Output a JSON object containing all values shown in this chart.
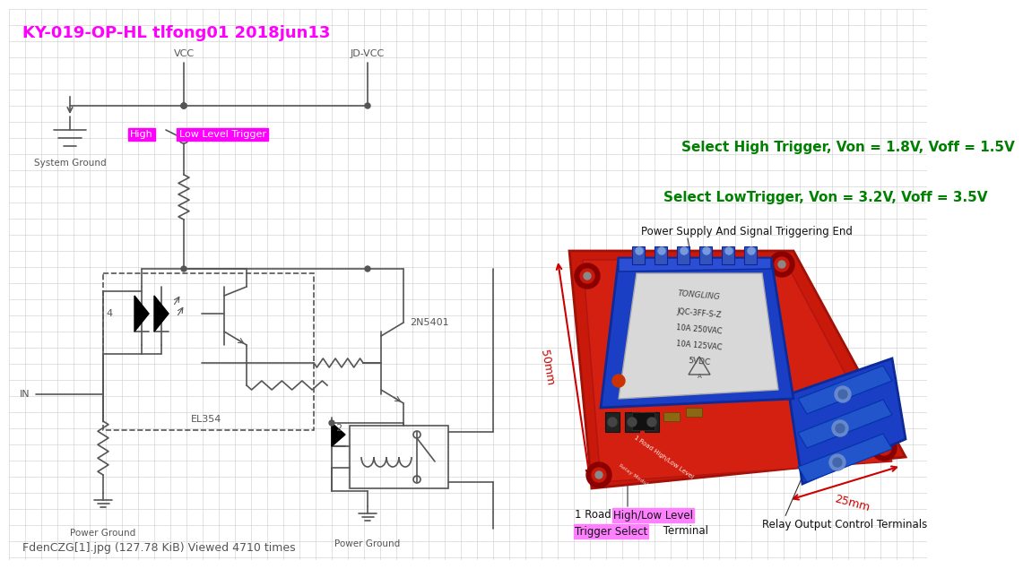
{
  "title": "KY-019-OP-HL tlfong01 2018jun13",
  "title_color": "#FF00FF",
  "title_fontsize": 13,
  "bg_color": "#FFFFFF",
  "grid_color": "#CCCCCC",
  "footer_text": "FdenCZG[1].jpg (127.78 KiB) Viewed 4710 times",
  "footer_color": "#555555",
  "footer_fontsize": 9,
  "lc": "#555555",
  "lw": 1.2,
  "green_text1": "Select High Trigger, Von = 1.8V, Voff = 1.5V",
  "green_text2": "Select LowTrigger, Von = 3.2V, Voff = 3.5V",
  "green_color": "#008000",
  "green_fontsize": 11
}
